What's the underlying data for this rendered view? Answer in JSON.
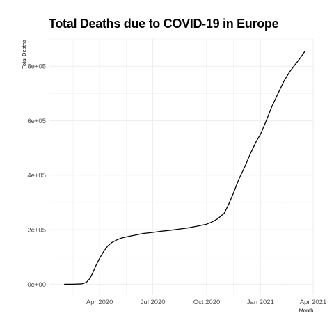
{
  "chart_data": {
    "type": "line",
    "title": "Total Deaths due to COVID-19 in Europe",
    "xlabel": "Month",
    "ylabel": "Total Deaths",
    "x_ticks": [
      "Apr 2020",
      "Jul 2020",
      "Oct 2020",
      "Jan 2021",
      "Apr 2021"
    ],
    "y_ticks": [
      "0e+00",
      "2e+05",
      "4e+05",
      "6e+05",
      "8e+05"
    ],
    "xlim": [
      "2020-01-05",
      "2021-04-01"
    ],
    "ylim": [
      -40000,
      900000
    ],
    "grid": true,
    "line_color": "#000000",
    "series": [
      {
        "x": [
          "2020-02-01",
          "2020-02-15",
          "2020-03-01",
          "2020-03-05",
          "2020-03-10",
          "2020-03-15",
          "2020-03-20",
          "2020-03-25",
          "2020-04-01",
          "2020-04-08",
          "2020-04-15",
          "2020-04-22",
          "2020-05-01",
          "2020-05-10",
          "2020-05-20",
          "2020-06-01",
          "2020-06-15",
          "2020-07-01",
          "2020-07-15",
          "2020-08-01",
          "2020-08-15",
          "2020-09-01",
          "2020-09-15",
          "2020-10-01",
          "2020-10-10",
          "2020-10-20",
          "2020-10-31",
          "2020-11-07",
          "2020-11-15",
          "2020-11-25",
          "2020-12-05",
          "2020-12-15",
          "2020-12-25",
          "2021-01-01",
          "2021-01-10",
          "2021-01-20",
          "2021-01-31",
          "2021-02-10",
          "2021-02-20",
          "2021-03-01",
          "2021-03-10",
          "2021-03-18"
        ],
        "y": [
          0,
          0,
          1000,
          3000,
          8000,
          20000,
          40000,
          65000,
          95000,
          120000,
          140000,
          153000,
          163000,
          170000,
          175000,
          180000,
          186000,
          190000,
          194000,
          198000,
          202000,
          207000,
          213000,
          220000,
          228000,
          240000,
          260000,
          290000,
          330000,
          385000,
          430000,
          480000,
          525000,
          550000,
          595000,
          650000,
          700000,
          745000,
          780000,
          805000,
          830000,
          855000
        ]
      }
    ]
  }
}
